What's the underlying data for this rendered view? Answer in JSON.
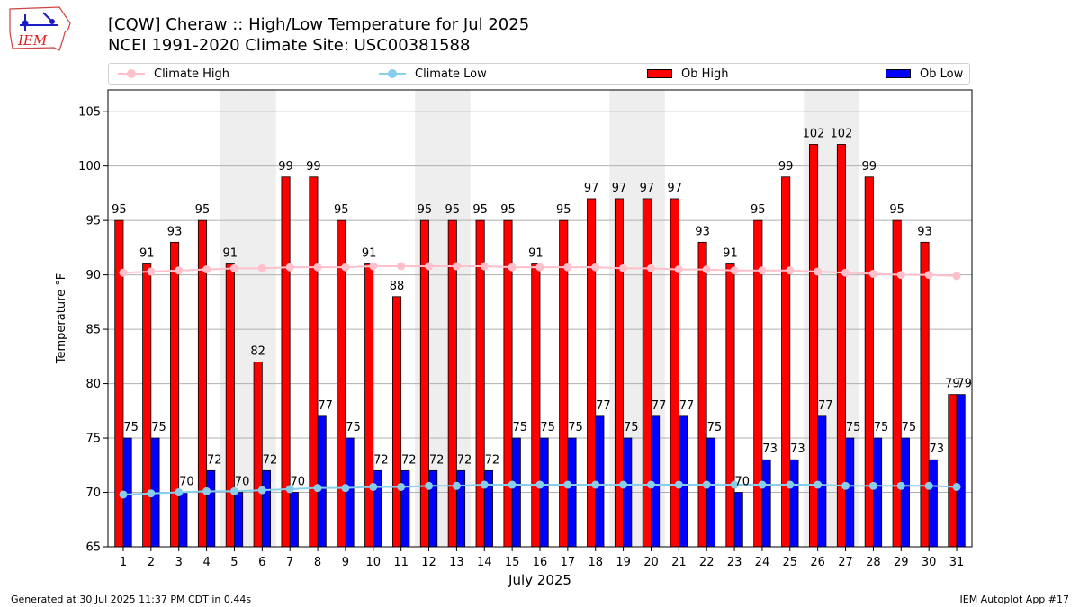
{
  "logo_text": "IEM",
  "title_line1": "[CQW] Cheraw :: High/Low Temperature for Jul 2025",
  "title_line2": "NCEI 1991-2020 Climate Site: USC00381588",
  "footer_left": "Generated at 30 Jul 2025 11:37 PM CDT in 0.44s",
  "footer_right": "IEM Autoplot App #17",
  "colors": {
    "ob_high": "#ff0000",
    "ob_low": "#0000ff",
    "climate_high": "#ffc0cb",
    "climate_low": "#87ceeb",
    "weekend_band": "#eeeeee"
  },
  "chart_data": {
    "type": "bar",
    "xlabel": "July 2025",
    "ylabel": "Temperature °F",
    "ylim": [
      65,
      107
    ],
    "yticks": [
      65,
      70,
      75,
      80,
      85,
      90,
      95,
      100,
      105
    ],
    "grid": true,
    "legend_position": "top",
    "categories": [
      1,
      2,
      3,
      4,
      5,
      6,
      7,
      8,
      9,
      10,
      11,
      12,
      13,
      14,
      15,
      16,
      17,
      18,
      19,
      20,
      21,
      22,
      23,
      24,
      25,
      26,
      27,
      28,
      29,
      30,
      31
    ],
    "shaded_days": [
      5,
      6,
      12,
      13,
      19,
      20,
      26,
      27
    ],
    "series": [
      {
        "name": "Climate High",
        "kind": "line",
        "values": [
          90.2,
          90.3,
          90.4,
          90.5,
          90.6,
          90.6,
          90.7,
          90.7,
          90.7,
          90.8,
          90.8,
          90.8,
          90.8,
          90.8,
          90.7,
          90.7,
          90.7,
          90.7,
          90.6,
          90.6,
          90.5,
          90.5,
          90.4,
          90.4,
          90.4,
          90.3,
          90.2,
          90.1,
          90.0,
          90.0,
          89.9
        ]
      },
      {
        "name": "Climate Low",
        "kind": "line",
        "values": [
          69.8,
          69.9,
          70.0,
          70.1,
          70.1,
          70.2,
          70.3,
          70.4,
          70.4,
          70.5,
          70.5,
          70.6,
          70.6,
          70.7,
          70.7,
          70.7,
          70.7,
          70.7,
          70.7,
          70.7,
          70.7,
          70.7,
          70.7,
          70.7,
          70.7,
          70.7,
          70.6,
          70.6,
          70.6,
          70.6,
          70.5
        ]
      },
      {
        "name": "Ob High",
        "kind": "bar",
        "values": [
          95,
          91,
          93,
          95,
          91,
          82,
          99,
          99,
          95,
          91,
          88,
          95,
          95,
          95,
          95,
          91,
          95,
          97,
          97,
          97,
          97,
          93,
          91,
          95,
          99,
          102,
          102,
          99,
          95,
          93,
          79
        ]
      },
      {
        "name": "Ob Low",
        "kind": "bar",
        "values": [
          75,
          75,
          70,
          72,
          70,
          72,
          70,
          77,
          75,
          72,
          72,
          72,
          72,
          72,
          75,
          75,
          75,
          77,
          75,
          77,
          77,
          75,
          70,
          73,
          73,
          77,
          75,
          75,
          75,
          73,
          79
        ]
      }
    ]
  }
}
